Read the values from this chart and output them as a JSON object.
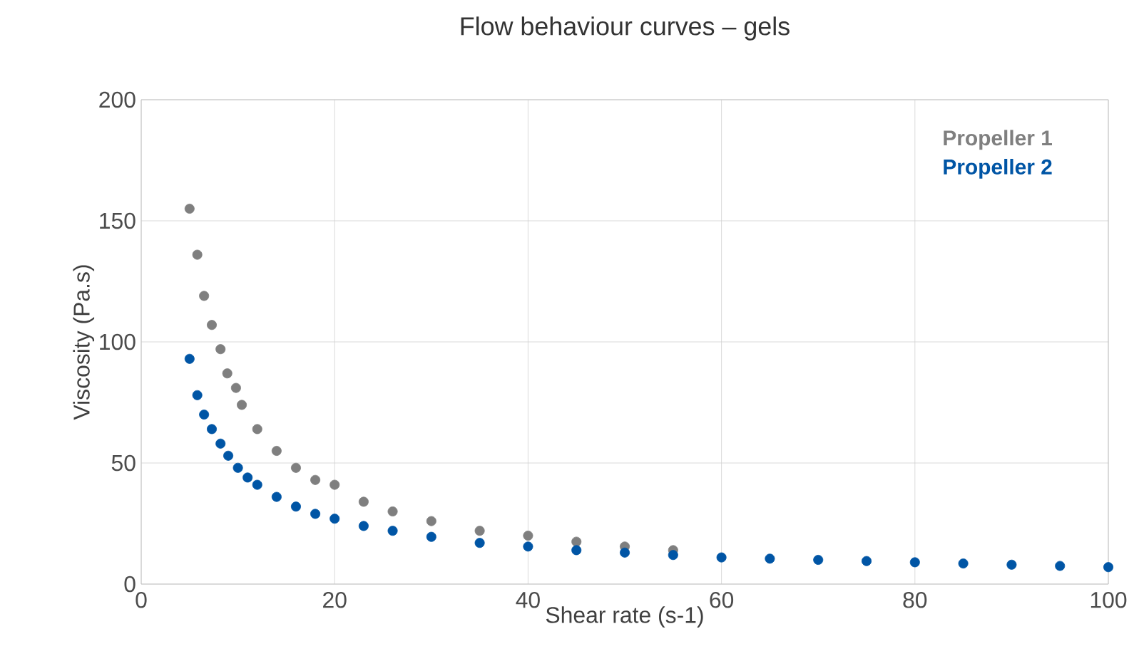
{
  "chart_data": {
    "type": "scatter",
    "title": "Flow behaviour curves – gels",
    "xlabel": "Shear rate (s-1)",
    "ylabel": "Viscosity (Pa.s)",
    "xlim": [
      0,
      100
    ],
    "ylim": [
      0,
      200
    ],
    "xticks": [
      0,
      20,
      40,
      60,
      80,
      100
    ],
    "yticks": [
      0,
      50,
      100,
      150,
      200
    ],
    "grid": true,
    "legend": "top right",
    "marker": "circle",
    "series": [
      {
        "name": "Propeller 1",
        "color": "#7f7f7f",
        "x": [
          5,
          5.8,
          6.5,
          7.3,
          8.2,
          8.9,
          9.8,
          10.4,
          12,
          14,
          16,
          18,
          20,
          23,
          26,
          30,
          35,
          40,
          45,
          50,
          55
        ],
        "values": [
          155,
          136,
          119,
          107,
          97,
          87,
          81,
          74,
          64,
          55,
          48,
          43,
          41,
          34,
          30,
          26,
          22,
          20,
          17.5,
          15.5,
          14
        ]
      },
      {
        "name": "Propeller 2",
        "color": "#0055a5",
        "x": [
          5,
          5.8,
          6.5,
          7.3,
          8.2,
          9,
          10,
          11,
          12,
          14,
          16,
          18,
          20,
          23,
          26,
          30,
          35,
          40,
          45,
          50,
          55,
          60,
          65,
          70,
          75,
          80,
          85,
          90,
          95,
          100
        ],
        "values": [
          93,
          78,
          70,
          64,
          58,
          53,
          48,
          44,
          41,
          36,
          32,
          29,
          27,
          24,
          22,
          19.5,
          17,
          15.5,
          14,
          13,
          12,
          11,
          10.5,
          10,
          9.5,
          9,
          8.5,
          8,
          7.5,
          7
        ]
      }
    ]
  }
}
